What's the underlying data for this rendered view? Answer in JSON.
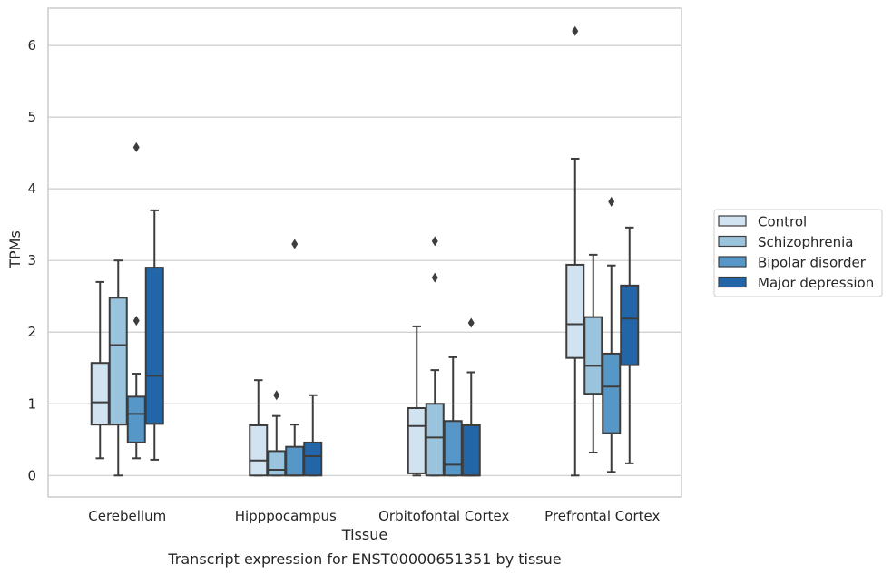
{
  "chart_data": {
    "type": "box",
    "title": "",
    "caption": "Transcript expression for ENST00000651351 by tissue",
    "xlabel": "Tissue",
    "ylabel": "TPMs",
    "ylim": [
      -0.3,
      6.52
    ],
    "yticks": [
      "0",
      "1",
      "2",
      "3",
      "4",
      "5",
      "6"
    ],
    "grid": "horizontal",
    "legend_position": "right",
    "categories": [
      "Cerebellum",
      "Hipppocampus",
      "Orbitofontal Cortex",
      "Prefrontal Cortex"
    ],
    "series": [
      {
        "name": "Control",
        "color": "#d1e2f1",
        "boxes": [
          {
            "whislo": 0.24,
            "q1": 0.71,
            "med": 1.02,
            "q3": 1.57,
            "whishi": 2.7,
            "fliers": []
          },
          {
            "whislo": 0.0,
            "q1": 0.0,
            "med": 0.21,
            "q3": 0.7,
            "whishi": 1.33,
            "fliers": []
          },
          {
            "whislo": 0.0,
            "q1": 0.03,
            "med": 0.69,
            "q3": 0.94,
            "whishi": 2.08,
            "fliers": []
          },
          {
            "whislo": 0.0,
            "q1": 1.64,
            "med": 2.11,
            "q3": 2.94,
            "whishi": 4.42,
            "fliers": [
              6.2
            ]
          }
        ]
      },
      {
        "name": "Schizophrenia",
        "color": "#9ac4dd",
        "boxes": [
          {
            "whislo": 0.0,
            "q1": 0.71,
            "med": 1.82,
            "q3": 2.48,
            "whishi": 3.0,
            "fliers": []
          },
          {
            "whislo": 0.0,
            "q1": 0.0,
            "med": 0.08,
            "q3": 0.34,
            "whishi": 0.83,
            "fliers": [
              1.12
            ]
          },
          {
            "whislo": 0.0,
            "q1": 0.0,
            "med": 0.53,
            "q3": 1.0,
            "whishi": 1.47,
            "fliers": [
              2.76,
              3.27
            ]
          },
          {
            "whislo": 0.32,
            "q1": 1.14,
            "med": 1.53,
            "q3": 2.21,
            "whishi": 3.08,
            "fliers": []
          }
        ]
      },
      {
        "name": "Bipolar disorder",
        "color": "#5797c7",
        "boxes": [
          {
            "whislo": 0.24,
            "q1": 0.46,
            "med": 0.86,
            "q3": 1.1,
            "whishi": 1.42,
            "fliers": [
              2.16,
              4.58
            ]
          },
          {
            "whislo": 0.0,
            "q1": 0.0,
            "med": 0.0,
            "q3": 0.4,
            "whishi": 0.71,
            "fliers": [
              3.23
            ]
          },
          {
            "whislo": 0.0,
            "q1": 0.0,
            "med": 0.15,
            "q3": 0.76,
            "whishi": 1.65,
            "fliers": []
          },
          {
            "whislo": 0.05,
            "q1": 0.59,
            "med": 1.24,
            "q3": 1.7,
            "whishi": 2.93,
            "fliers": [
              3.82
            ]
          }
        ]
      },
      {
        "name": "Major depression",
        "color": "#2366a8",
        "boxes": [
          {
            "whislo": 0.22,
            "q1": 0.72,
            "med": 1.39,
            "q3": 2.9,
            "whishi": 3.7,
            "fliers": []
          },
          {
            "whislo": 0.0,
            "q1": 0.0,
            "med": 0.27,
            "q3": 0.46,
            "whishi": 1.12,
            "fliers": []
          },
          {
            "whislo": 0.0,
            "q1": 0.0,
            "med": 0.0,
            "q3": 0.7,
            "whishi": 1.44,
            "fliers": [
              2.13
            ]
          },
          {
            "whislo": 0.17,
            "q1": 1.54,
            "med": 2.19,
            "q3": 2.65,
            "whishi": 3.46,
            "fliers": []
          }
        ]
      }
    ]
  }
}
